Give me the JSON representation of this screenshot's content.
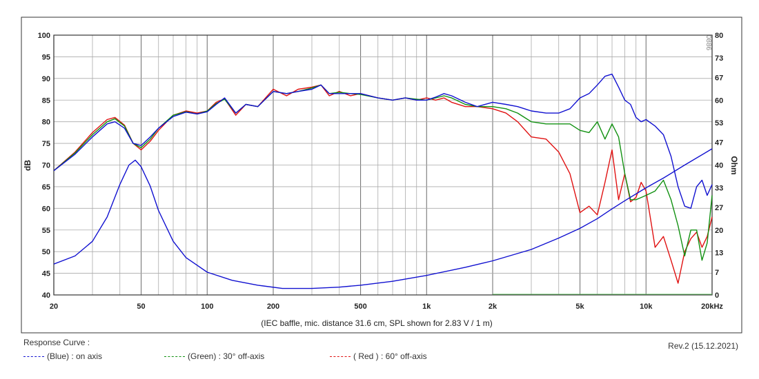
{
  "chart_data": {
    "type": "line",
    "title": "",
    "xlabel": "(IEC baffle, mic. distance 31.6 cm, SPL shown for 2.83 V / 1 m)",
    "ylabel_left": "dB",
    "ylabel_right": "Ohm",
    "x_scale": "log",
    "xlim": [
      20,
      20000
    ],
    "ylim_left": [
      40,
      100
    ],
    "ylim_right": [
      0,
      80
    ],
    "x_tick_labels": [
      "20",
      "50",
      "100",
      "200",
      "500",
      "1k",
      "2k",
      "5k",
      "10k",
      "20kHz"
    ],
    "x_tick_values": [
      20,
      50,
      100,
      200,
      500,
      1000,
      2000,
      5000,
      10000,
      20000
    ],
    "y_left_ticks": [
      40,
      45,
      50,
      55,
      60,
      65,
      70,
      75,
      80,
      85,
      90,
      95,
      100
    ],
    "y_right_ticks": [
      0,
      7,
      13,
      20,
      27,
      33,
      40,
      47,
      53,
      60,
      67,
      73,
      80
    ],
    "watermark": "0886",
    "grid": true,
    "legend_placement": "bottom-left",
    "series": [
      {
        "name": "(Blue) : on axis",
        "color": "#1010d0",
        "axis": "left",
        "x": [
          20,
          25,
          30,
          35,
          38,
          42,
          46,
          50,
          55,
          60,
          70,
          80,
          90,
          100,
          110,
          120,
          135,
          150,
          170,
          200,
          230,
          260,
          300,
          330,
          360,
          400,
          450,
          500,
          600,
          700,
          800,
          900,
          1000,
          1100,
          1200,
          1300,
          1500,
          1700,
          2000,
          2300,
          2600,
          3000,
          3500,
          4000,
          4500,
          5000,
          5500,
          6000,
          6500,
          7000,
          7500,
          8000,
          8500,
          9000,
          9500,
          10000,
          11000,
          12000,
          13000,
          14000,
          15000,
          16000,
          17000,
          18000,
          19000,
          20000
        ],
        "y": [
          68.7,
          72.5,
          76.5,
          79.5,
          80.0,
          78.5,
          75.0,
          74.5,
          76.5,
          78.5,
          81.2,
          82.2,
          81.8,
          82.3,
          84.0,
          85.5,
          82.0,
          84.0,
          83.5,
          87.0,
          86.5,
          87.0,
          87.5,
          88.5,
          86.5,
          86.5,
          86.5,
          86.5,
          85.5,
          85.0,
          85.5,
          85.0,
          85.0,
          85.7,
          86.5,
          86.0,
          84.5,
          83.5,
          84.5,
          84.0,
          83.5,
          82.5,
          82.0,
          82.0,
          83.0,
          85.5,
          86.5,
          88.5,
          90.5,
          91.0,
          88.0,
          85.0,
          84.0,
          81.0,
          80.0,
          80.5,
          79.0,
          77.0,
          72.0,
          65.0,
          60.5,
          60.0,
          65.0,
          66.5,
          63.0,
          65.5
        ]
      },
      {
        "name": "(Green) : 30° off-axis",
        "color": "#109010",
        "axis": "left",
        "x": [
          20,
          25,
          30,
          35,
          38,
          42,
          46,
          50,
          55,
          60,
          70,
          80,
          90,
          100,
          110,
          120,
          135,
          150,
          170,
          200,
          230,
          260,
          300,
          330,
          360,
          400,
          450,
          500,
          600,
          700,
          800,
          900,
          1000,
          1100,
          1200,
          1300,
          1500,
          1700,
          2000,
          2300,
          2600,
          3000,
          3500,
          4000,
          4500,
          5000,
          5500,
          6000,
          6500,
          7000,
          7500,
          8000,
          8500,
          9000,
          9500,
          10000,
          11000,
          12000,
          13000,
          14000,
          15000,
          16000,
          17000,
          18000,
          19000,
          20000
        ],
        "y": [
          68.7,
          72.8,
          77.0,
          80.0,
          80.7,
          79.0,
          75.0,
          74.0,
          76.0,
          78.5,
          81.5,
          82.3,
          81.8,
          82.5,
          84.2,
          85.2,
          82.0,
          84.0,
          83.5,
          87.0,
          86.5,
          87.0,
          87.8,
          88.5,
          86.5,
          86.8,
          86.5,
          86.3,
          85.5,
          85.0,
          85.5,
          85.2,
          85.0,
          85.5,
          86.0,
          85.5,
          84.0,
          83.5,
          83.5,
          83.0,
          82.0,
          80.0,
          79.5,
          79.5,
          79.5,
          78.0,
          77.5,
          80.0,
          76.0,
          79.5,
          76.5,
          68.0,
          62.0,
          62.0,
          62.5,
          63.0,
          64.0,
          66.5,
          62.0,
          56.0,
          49.0,
          55.0,
          55.0,
          48.0,
          52.0,
          63.0
        ]
      },
      {
        "name": "( Red ) : 60° off-axis",
        "color": "#e01010",
        "axis": "left",
        "x": [
          20,
          25,
          30,
          35,
          38,
          42,
          46,
          50,
          55,
          60,
          70,
          80,
          90,
          100,
          110,
          120,
          135,
          150,
          170,
          200,
          230,
          260,
          300,
          330,
          360,
          400,
          450,
          500,
          600,
          700,
          800,
          900,
          1000,
          1100,
          1200,
          1300,
          1500,
          1700,
          2000,
          2300,
          2600,
          3000,
          3500,
          4000,
          4500,
          5000,
          5500,
          6000,
          6500,
          7000,
          7500,
          8000,
          8500,
          9000,
          9500,
          10000,
          11000,
          12000,
          13000,
          14000,
          15000,
          16000,
          17000,
          18000,
          19000,
          20000
        ],
        "y": [
          68.7,
          73.0,
          77.5,
          80.5,
          81.0,
          79.2,
          75.0,
          73.5,
          75.5,
          78.0,
          81.5,
          82.5,
          82.0,
          82.5,
          84.5,
          85.3,
          81.5,
          84.0,
          83.5,
          87.5,
          86.0,
          87.5,
          88.0,
          88.5,
          86.0,
          87.0,
          86.0,
          86.5,
          85.5,
          85.0,
          85.5,
          85.0,
          85.5,
          85.0,
          85.5,
          84.5,
          83.5,
          83.5,
          83.0,
          82.0,
          80.0,
          76.5,
          76.0,
          73.0,
          68.0,
          59.0,
          60.5,
          58.5,
          66.0,
          73.5,
          62.0,
          68.0,
          61.5,
          62.5,
          66.0,
          64.0,
          51.0,
          53.5,
          48.0,
          42.7,
          50.0,
          53.0,
          54.5,
          51.0,
          53.5,
          58.0
        ]
      },
      {
        "name": "impedance",
        "color": "#1010d0",
        "axis": "right",
        "x": [
          20,
          25,
          30,
          35,
          40,
          44,
          47,
          50,
          55,
          60,
          70,
          80,
          100,
          130,
          170,
          220,
          300,
          400,
          500,
          700,
          1000,
          1500,
          2000,
          3000,
          4000,
          5000,
          6000,
          7000,
          8000,
          10000,
          12000,
          15000,
          20000
        ],
        "y": [
          9.5,
          12.0,
          16.5,
          24.0,
          34.0,
          40.0,
          41.5,
          39.5,
          33.5,
          26.0,
          16.5,
          11.5,
          7.0,
          4.5,
          3.0,
          2.0,
          2.0,
          2.4,
          3.0,
          4.2,
          6.0,
          8.5,
          10.5,
          14.0,
          17.5,
          20.5,
          23.5,
          26.5,
          29.0,
          33.0,
          36.0,
          40.0,
          45.0
        ]
      }
    ]
  },
  "footer": {
    "response_curve_label": "Response Curve :",
    "legend_blue": "(Blue)  : on axis",
    "legend_green": "(Green) : 30° off-axis",
    "legend_red": "( Red ) : 60° off-axis",
    "revision": "Rev.2 (15.12.2021)"
  }
}
